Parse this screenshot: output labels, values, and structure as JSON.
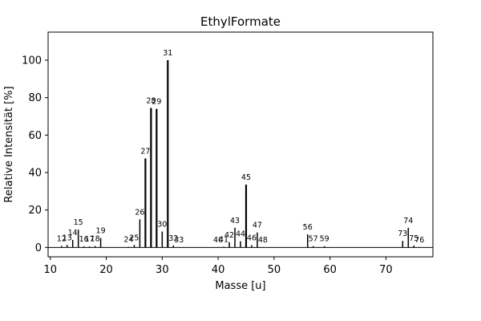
{
  "chart_data": {
    "type": "bar",
    "title": "EthylFormate",
    "xlabel": "Masse [u]",
    "ylabel": "Relative Intensität [%]",
    "xlim": [
      9.6,
      78.4
    ],
    "ylim": [
      -5,
      115
    ],
    "x_ticks": [
      10,
      20,
      30,
      40,
      50,
      60,
      70
    ],
    "y_ticks": [
      0,
      20,
      40,
      60,
      80,
      100
    ],
    "grid": false,
    "legend": "none",
    "bar_color": "#000000",
    "peaks": [
      {
        "mass": 12,
        "intensity": 0.8
      },
      {
        "mass": 13,
        "intensity": 1.3
      },
      {
        "mass": 14,
        "intensity": 4.0
      },
      {
        "mass": 15,
        "intensity": 9.5
      },
      {
        "mass": 16,
        "intensity": 0.6
      },
      {
        "mass": 17,
        "intensity": 0.5
      },
      {
        "mass": 18,
        "intensity": 0.8
      },
      {
        "mass": 19,
        "intensity": 5.0
      },
      {
        "mass": 24,
        "intensity": 0.3
      },
      {
        "mass": 25,
        "intensity": 1.3
      },
      {
        "mass": 26,
        "intensity": 15.0
      },
      {
        "mass": 27,
        "intensity": 47.5
      },
      {
        "mass": 28,
        "intensity": 74.5
      },
      {
        "mass": 29,
        "intensity": 74.0
      },
      {
        "mass": 30,
        "intensity": 8.5
      },
      {
        "mass": 31,
        "intensity": 100.0
      },
      {
        "mass": 32,
        "intensity": 1.1
      },
      {
        "mass": 33,
        "intensity": 0.2
      },
      {
        "mass": 40,
        "intensity": 0.2
      },
      {
        "mass": 41,
        "intensity": 0.4
      },
      {
        "mass": 42,
        "intensity": 2.8
      },
      {
        "mass": 43,
        "intensity": 10.5
      },
      {
        "mass": 44,
        "intensity": 3.3
      },
      {
        "mass": 45,
        "intensity": 33.5
      },
      {
        "mass": 46,
        "intensity": 1.2
      },
      {
        "mass": 47,
        "intensity": 8.0
      },
      {
        "mass": 48,
        "intensity": 0.2
      },
      {
        "mass": 56,
        "intensity": 7.0
      },
      {
        "mass": 57,
        "intensity": 0.7
      },
      {
        "mass": 59,
        "intensity": 0.7
      },
      {
        "mass": 73,
        "intensity": 3.5
      },
      {
        "mass": 74,
        "intensity": 10.5
      },
      {
        "mass": 75,
        "intensity": 1.0
      },
      {
        "mass": 76,
        "intensity": 0.2
      }
    ]
  }
}
